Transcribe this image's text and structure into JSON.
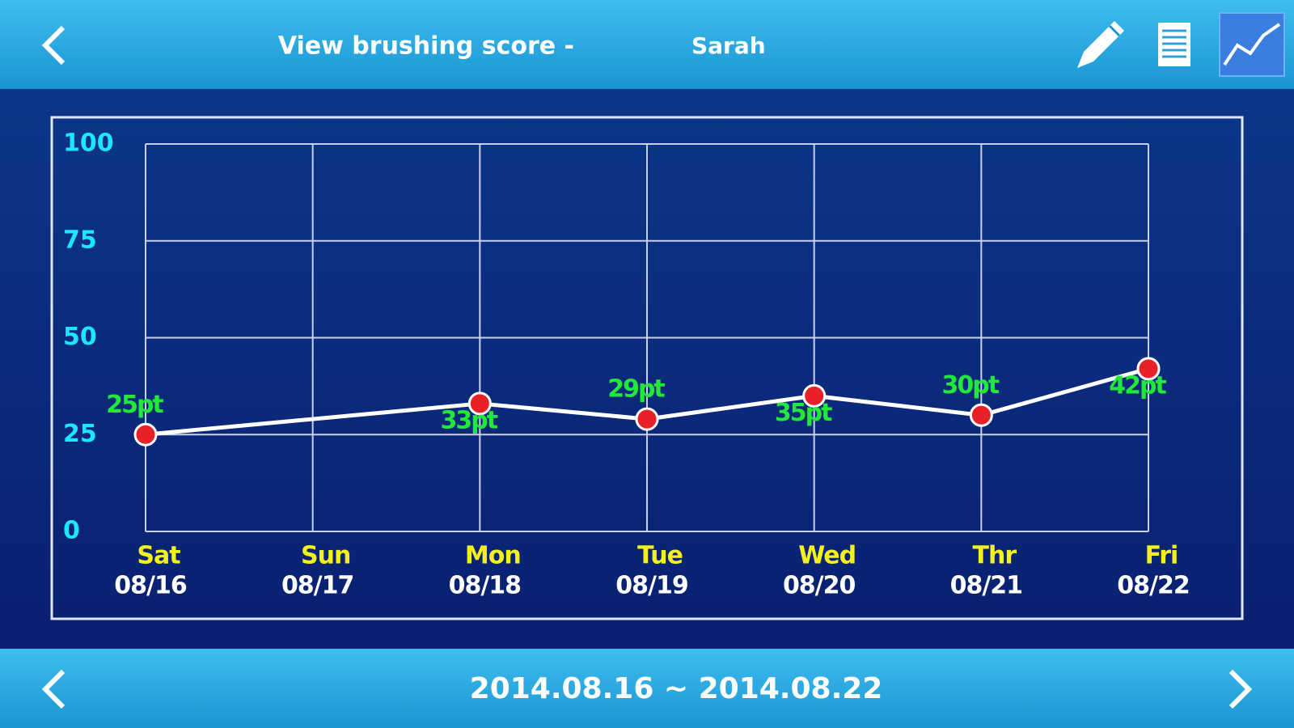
{
  "header": {
    "title": "View brushing score -",
    "user": "Sarah"
  },
  "chart_data": {
    "type": "line",
    "categories": [
      "Sat",
      "Sun",
      "Mon",
      "Tue",
      "Wed",
      "Thr",
      "Fri"
    ],
    "dates": [
      "08/16",
      "08/17",
      "08/18",
      "08/19",
      "08/20",
      "08/21",
      "08/22"
    ],
    "series": [
      {
        "color": "#ffffff",
        "values": [
          25,
          null,
          33,
          29,
          35,
          30,
          42
        ],
        "value_labels": [
          "25pt",
          null,
          "33pt",
          "29pt",
          "35pt",
          "30pt",
          "42pt"
        ]
      }
    ],
    "marker_color": "#e8202a",
    "connect_gaps": true,
    "ylim": [
      0,
      100
    ],
    "yticks": [
      0,
      25,
      50,
      75,
      100
    ],
    "grid": true
  },
  "footer": {
    "range": "2014.08.16 ~ 2014.08.22"
  }
}
